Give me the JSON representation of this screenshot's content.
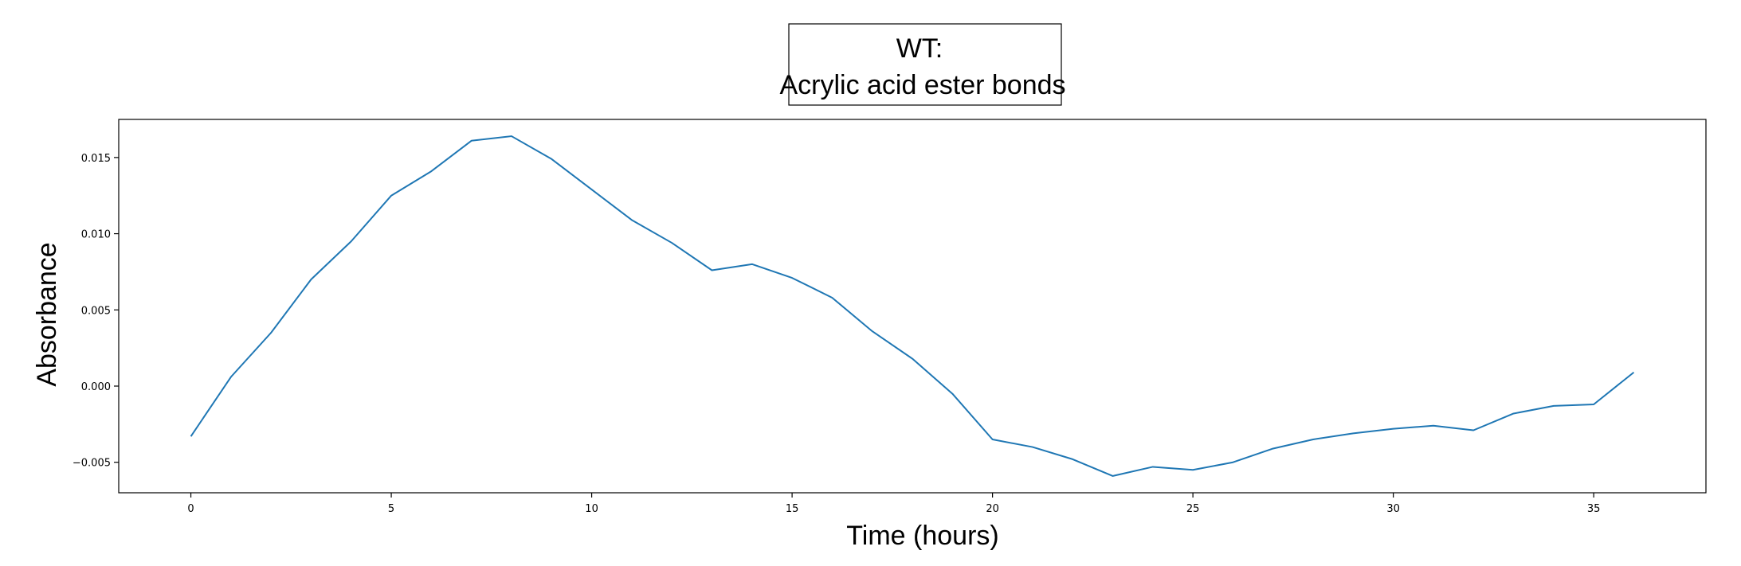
{
  "chart_data": {
    "type": "line",
    "title_lines": [
      "WT:",
      "Acrylic acid ester bonds"
    ],
    "xlabel": "Time (hours)",
    "ylabel": "Absorbance",
    "xlim": [
      -1.8,
      37.8
    ],
    "ylim": [
      -0.007,
      0.0175
    ],
    "xticks": [
      0,
      5,
      10,
      15,
      20,
      25,
      30,
      35
    ],
    "yticks": [
      -0.005,
      0.0,
      0.005,
      0.01,
      0.015
    ],
    "ytick_labels": [
      "−0.005",
      "0.000",
      "0.005",
      "0.010",
      "0.015"
    ],
    "grid": false,
    "series": [
      {
        "name": "WT",
        "color": "#1f77b4",
        "x": [
          0,
          1,
          2,
          3,
          4,
          5,
          6,
          7,
          8,
          9,
          10,
          11,
          12,
          13,
          14,
          15,
          16,
          17,
          18,
          19,
          20,
          21,
          22,
          23,
          24,
          25,
          26,
          27,
          28,
          29,
          30,
          31,
          32,
          33,
          34,
          35,
          36
        ],
        "y": [
          -0.0033,
          0.0006,
          0.0035,
          0.007,
          0.0095,
          0.0125,
          0.0141,
          0.0161,
          0.0164,
          0.0149,
          0.0129,
          0.0109,
          0.0094,
          0.0076,
          0.008,
          0.0071,
          0.0058,
          0.0036,
          0.0018,
          -0.0005,
          -0.0035,
          -0.004,
          -0.0048,
          -0.0059,
          -0.0053,
          -0.0055,
          -0.005,
          -0.0041,
          -0.0035,
          -0.0031,
          -0.0028,
          -0.0026,
          -0.0029,
          -0.0018,
          -0.0013,
          -0.0012,
          0.0009
        ]
      }
    ]
  }
}
